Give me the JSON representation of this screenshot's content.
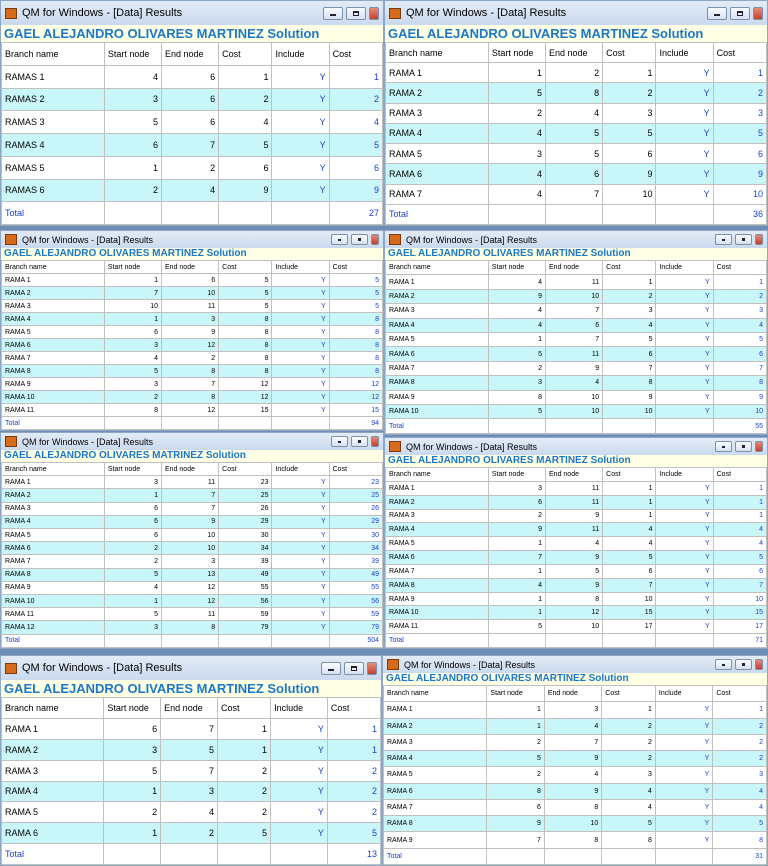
{
  "windows": [
    {
      "title": "QM for Windows - [Data] Results",
      "heading": "GAEL ALEJANDRO OLIVARES MARTINEZ Solution",
      "columns": [
        "Branch name",
        "Start node",
        "End node",
        "Cost",
        "Include",
        "Cost"
      ],
      "rows": [
        [
          "RAMAS 1",
          4,
          6,
          1,
          "Y",
          1
        ],
        [
          "RAMAS 2",
          3,
          6,
          2,
          "Y",
          2
        ],
        [
          "RAMAS 3",
          5,
          6,
          4,
          "Y",
          4
        ],
        [
          "RAMAS 4",
          6,
          7,
          5,
          "Y",
          5
        ],
        [
          "RAMAS 5",
          1,
          2,
          6,
          "Y",
          6
        ],
        [
          "RAMAS 6",
          2,
          4,
          9,
          "Y",
          9
        ]
      ],
      "total_label": "Total",
      "total": 27
    },
    {
      "title": "QM for Windows - [Data] Results",
      "heading": "GAEL ALEJANDRO OLIVARES MARTINEZ  Solution",
      "columns": [
        "Branch name",
        "Start node",
        "End node",
        "Cost",
        "Include",
        "Cost"
      ],
      "rows": [
        [
          "RAMA 1",
          1,
          2,
          1,
          "Y",
          1
        ],
        [
          "RAMA 2",
          5,
          8,
          2,
          "Y",
          2
        ],
        [
          "RAMA 3",
          2,
          4,
          3,
          "Y",
          3
        ],
        [
          "RAMA 4",
          4,
          5,
          5,
          "Y",
          5
        ],
        [
          "RAMA 5",
          3,
          5,
          6,
          "Y",
          6
        ],
        [
          "RAMA 6",
          4,
          6,
          9,
          "Y",
          9
        ],
        [
          "RAMA 7",
          4,
          7,
          10,
          "Y",
          10
        ]
      ],
      "total_label": "Total",
      "total": 36
    },
    {
      "title": "QM for Windows - [Data] Results",
      "heading": "GAEL ALEJANDRO OLIVARES MARTINEZ Solution",
      "columns": [
        "Branch name",
        "Start node",
        "End node",
        "Cost",
        "Include",
        "Cost"
      ],
      "rows": [
        [
          "RAMA 1",
          1,
          6,
          5,
          "Y",
          5
        ],
        [
          "RAMA 2",
          7,
          10,
          5,
          "Y",
          5
        ],
        [
          "RAMA 3",
          10,
          11,
          5,
          "Y",
          5
        ],
        [
          "RAMA 4",
          1,
          3,
          8,
          "Y",
          8
        ],
        [
          "RAMA 5",
          6,
          9,
          8,
          "Y",
          8
        ],
        [
          "RAMA 6",
          3,
          12,
          8,
          "Y",
          8
        ],
        [
          "RAMA 7",
          4,
          2,
          8,
          "Y",
          8
        ],
        [
          "RAMA 8",
          5,
          8,
          8,
          "Y",
          8
        ],
        [
          "RAMA 9",
          3,
          7,
          12,
          "Y",
          12
        ],
        [
          "RAMA 10",
          2,
          8,
          12,
          "Y",
          12
        ],
        [
          "RAMA 11",
          8,
          12,
          15,
          "Y",
          15
        ]
      ],
      "total_label": "Total",
      "total": 94
    },
    {
      "title": "QM for Windows - [Data] Results",
      "heading": "GAEL ALEJANDRO OLIVARES MARTINEZ Solution",
      "columns": [
        "Branch name",
        "Start node",
        "End node",
        "Cost",
        "Include",
        "Cost"
      ],
      "rows": [
        [
          "RAMA 1",
          4,
          11,
          1,
          "Y",
          1
        ],
        [
          "RAMA 2",
          9,
          10,
          2,
          "Y",
          2
        ],
        [
          "RAMA 3",
          4,
          7,
          3,
          "Y",
          3
        ],
        [
          "RAMA 4",
          4,
          6,
          4,
          "Y",
          4
        ],
        [
          "RAMA 5",
          1,
          7,
          5,
          "Y",
          5
        ],
        [
          "RAMA 6",
          5,
          11,
          6,
          "Y",
          6
        ],
        [
          "RAMA 7",
          2,
          9,
          7,
          "Y",
          7
        ],
        [
          "RAMA 8",
          3,
          4,
          8,
          "Y",
          8
        ],
        [
          "RAMA 9",
          8,
          10,
          9,
          "Y",
          9
        ],
        [
          "RAMA 10",
          5,
          10,
          10,
          "Y",
          10
        ]
      ],
      "total_label": "Total",
      "total": 55
    },
    {
      "title": "QM for Windows - [Data] Results",
      "heading": "GAEL ALEJANDRO OLIVARES MATRINEZ Solution",
      "columns": [
        "Branch name",
        "Start node",
        "End node",
        "Cost",
        "Include",
        "Cost"
      ],
      "rows": [
        [
          "RAMA 1",
          3,
          11,
          23,
          "Y",
          23
        ],
        [
          "RAMA 2",
          1,
          7,
          25,
          "Y",
          25
        ],
        [
          "RAMA 3",
          6,
          7,
          26,
          "Y",
          26
        ],
        [
          "RAMA 4",
          6,
          9,
          29,
          "Y",
          29
        ],
        [
          "RAMA 5",
          6,
          10,
          30,
          "Y",
          30
        ],
        [
          "RAMA 6",
          2,
          10,
          34,
          "Y",
          34
        ],
        [
          "RAMA 7",
          2,
          3,
          39,
          "Y",
          39
        ],
        [
          "RAMA 8",
          5,
          13,
          49,
          "Y",
          49
        ],
        [
          "RAMA 9",
          4,
          12,
          55,
          "Y",
          55
        ],
        [
          "RAMA 10",
          1,
          12,
          56,
          "Y",
          56
        ],
        [
          "RAMA 11",
          5,
          11,
          59,
          "Y",
          59
        ],
        [
          "RAMA 12",
          3,
          8,
          79,
          "Y",
          79
        ]
      ],
      "total_label": "Total",
      "total": 504
    },
    {
      "title": "QM for Windows - [Data] Results",
      "heading": "GAEL ALEJANDRO OLIVARES MARTINEZ Solution",
      "columns": [
        "Branch name",
        "Start node",
        "End node",
        "Cost",
        "Include",
        "Cost"
      ],
      "rows": [
        [
          "RAMA 1",
          3,
          11,
          1,
          "Y",
          1
        ],
        [
          "RAMA 2",
          6,
          11,
          1,
          "Y",
          1
        ],
        [
          "RAMA 3",
          2,
          9,
          1,
          "Y",
          1
        ],
        [
          "RAMA 4",
          9,
          11,
          4,
          "Y",
          4
        ],
        [
          "RAMA 5",
          1,
          4,
          4,
          "Y",
          4
        ],
        [
          "RAMA 6",
          7,
          9,
          5,
          "Y",
          5
        ],
        [
          "RAMA 7",
          1,
          5,
          6,
          "Y",
          6
        ],
        [
          "RAMA 8",
          4,
          9,
          7,
          "Y",
          7
        ],
        [
          "RAMA 9",
          1,
          8,
          10,
          "Y",
          10
        ],
        [
          "RAMA 10",
          1,
          12,
          15,
          "Y",
          15
        ],
        [
          "RAMA 11",
          5,
          10,
          17,
          "Y",
          17
        ]
      ],
      "total_label": "Total",
      "total": 71
    },
    {
      "title": "QM for Windows - [Data] Results",
      "heading": "GAEL ALEJANDRO OLIVARES MARTINEZ Solution",
      "columns": [
        "Branch name",
        "Start node",
        "End node",
        "Cost",
        "Include",
        "Cost"
      ],
      "rows": [
        [
          "RAMA 1",
          6,
          7,
          1,
          "Y",
          1
        ],
        [
          "RAMA 2",
          3,
          5,
          1,
          "Y",
          1
        ],
        [
          "RAMA 3",
          5,
          7,
          2,
          "Y",
          2
        ],
        [
          "RAMA 4",
          1,
          3,
          2,
          "Y",
          2
        ],
        [
          "RAMA 5",
          2,
          4,
          2,
          "Y",
          2
        ],
        [
          "RAMA 6",
          1,
          2,
          5,
          "Y",
          5
        ]
      ],
      "total_label": "Total",
      "total": 13
    },
    {
      "title": "QM for Windows - [Data] Results",
      "heading": "GAEL ALEJANDRO OLIVARES MARTINEZ Solution",
      "columns": [
        "Branch name",
        "Start node",
        "End node",
        "Cost",
        "Include",
        "Cost"
      ],
      "rows": [
        [
          "RAMA 1",
          1,
          3,
          1,
          "Y",
          1
        ],
        [
          "RAMA 2",
          1,
          4,
          2,
          "Y",
          2
        ],
        [
          "RAMA 3",
          2,
          7,
          2,
          "Y",
          2
        ],
        [
          "RAMA 4",
          5,
          9,
          2,
          "Y",
          2
        ],
        [
          "RAMA 5",
          2,
          4,
          3,
          "Y",
          3
        ],
        [
          "RAMA 6",
          8,
          9,
          4,
          "Y",
          4
        ],
        [
          "RAMA 7",
          6,
          8,
          4,
          "Y",
          4
        ],
        [
          "RAMA 8",
          9,
          10,
          5,
          "Y",
          5
        ],
        [
          "RAMA 9",
          7,
          8,
          8,
          "Y",
          8
        ]
      ],
      "total_label": "Total",
      "total": 31
    }
  ]
}
